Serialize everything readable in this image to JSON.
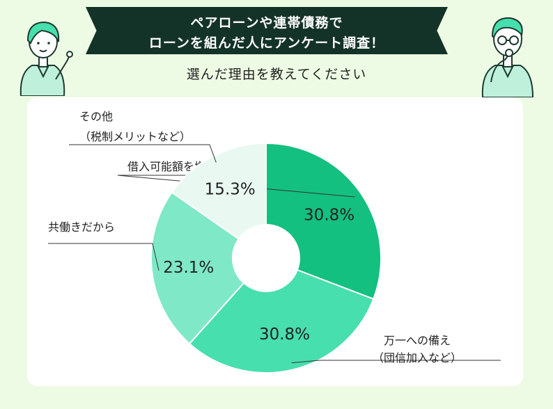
{
  "header": {
    "title_line1": "ペアローンや連帯債務で",
    "title_line2": "ローンを組んだ人にアンケート調査！",
    "question": "選んだ理由を教えてください"
  },
  "chart_data": {
    "type": "pie",
    "donut": true,
    "start": "top, clockwise",
    "title": "",
    "slices": [
      {
        "label": "借入可能額を増やすため",
        "sublabel": "",
        "value": 30.8,
        "display": "30.8%",
        "color": "#13c07f"
      },
      {
        "label": "万一への備え",
        "sublabel": "（団信加入など）",
        "value": 30.8,
        "display": "30.8%",
        "color": "#47dfad"
      },
      {
        "label": "共働きだから",
        "sublabel": "",
        "value": 23.1,
        "display": "23.1%",
        "color": "#7fe8c6"
      },
      {
        "label": "その他",
        "sublabel": "（税制メリットなど）",
        "value": 15.3,
        "display": "15.3%",
        "color": "#e9f9f1"
      }
    ]
  },
  "colors": {
    "background": "#eefbe4",
    "banner": "#143328",
    "card": "#ffffff"
  },
  "illustrations": {
    "left": "woman-pointing-icon",
    "right": "man-thinking-icon"
  }
}
